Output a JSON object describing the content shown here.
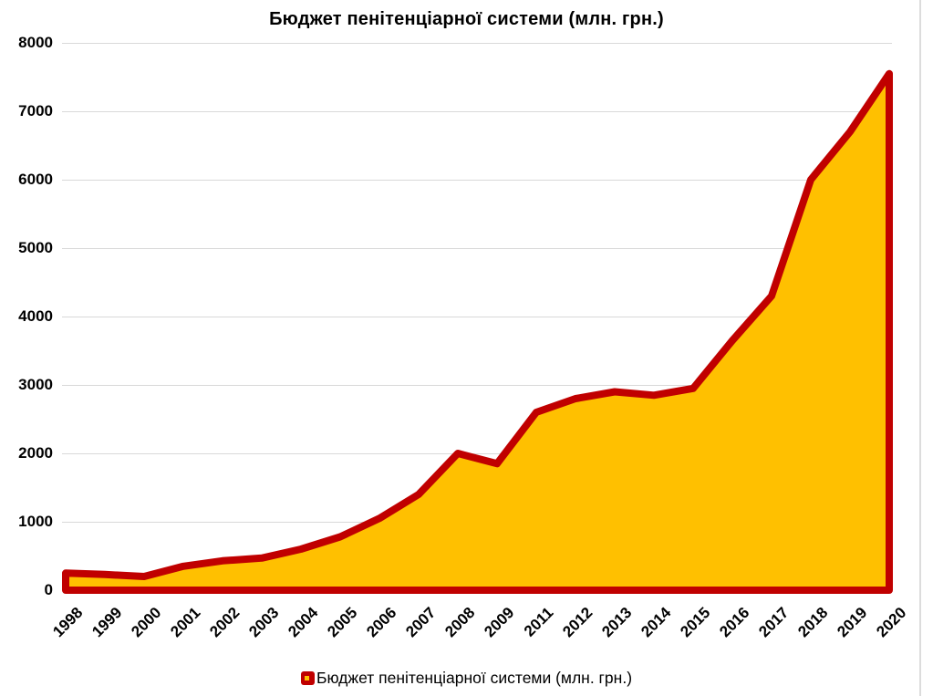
{
  "chart_data": {
    "type": "area",
    "title": "Бюджет пенітенціарної системи (млн. грн.)",
    "series_name": "Бюджет пенітенціарної системи (млн. грн.)",
    "categories": [
      "1998",
      "1999",
      "2000",
      "2001",
      "2002",
      "2003",
      "2004",
      "2005",
      "2006",
      "2007",
      "2008",
      "2009",
      "2011",
      "2012",
      "2013",
      "2014",
      "2015",
      "2016",
      "2017",
      "2018",
      "2019",
      "2020"
    ],
    "values": [
      250,
      230,
      200,
      350,
      430,
      470,
      600,
      780,
      1050,
      1400,
      2000,
      1850,
      2600,
      2800,
      2900,
      2850,
      2950,
      3650,
      4300,
      6000,
      6700,
      7550
    ],
    "xlabel": "",
    "ylabel": "",
    "ylim": [
      0,
      8000
    ],
    "y_tick_step": 1000,
    "grid": "horizontal",
    "legend_position": "bottom",
    "colors": {
      "line": "#c00000",
      "fill": "#ffc000",
      "gridline": "#d9d9d9",
      "text": "#000000"
    }
  }
}
